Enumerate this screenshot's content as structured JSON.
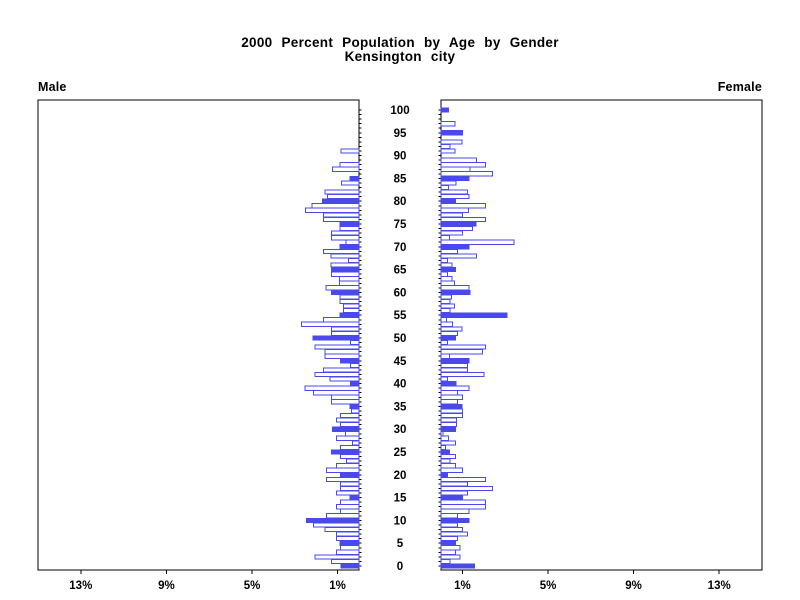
{
  "title": {
    "line1": "2000 Percent Population by Age by Gender",
    "line2": "Kensington city"
  },
  "panel_labels": {
    "left": "Male",
    "right": "Female"
  },
  "chart_data": {
    "type": "bar",
    "subtype": "population-pyramid",
    "title": "2000 Percent Population by Age by Gender",
    "subtitle": "Kensington city",
    "unit": "percent of total population",
    "age_min": 0,
    "age_max": 100,
    "solid_bar_every_years": 5,
    "axis": {
      "pct_max": 15,
      "grid": false,
      "male_ticks": {
        "values": [
          13,
          9,
          5,
          1
        ],
        "labels": [
          "13%",
          "9%",
          "5%",
          "1%"
        ]
      },
      "female_ticks": {
        "values": [
          1,
          5,
          9,
          13
        ],
        "labels": [
          "1%",
          "5%",
          "9%",
          "13%"
        ]
      },
      "age_tick_labels": [
        "0",
        "5",
        "10",
        "15",
        "20",
        "25",
        "30",
        "35",
        "40",
        "45",
        "50",
        "55",
        "60",
        "65",
        "70",
        "75",
        "80",
        "85",
        "90",
        "95",
        "100"
      ]
    },
    "colors": {
      "bar": "#4a4aec",
      "bar_fill_solid": "#4a4aec",
      "bar_fill_open": "#ffffff",
      "frame": "#000000",
      "text": "#000000",
      "background": "#ffffff"
    },
    "series": [
      {
        "name": "Male",
        "side": "left",
        "values_by_age": [
          0.84,
          1.28,
          2.06,
          1.04,
          0.86,
          0.89,
          1.04,
          1.04,
          1.59,
          2.13,
          2.45,
          1.51,
          0.86,
          1.04,
          0.86,
          0.42,
          1.04,
          0.86,
          0.86,
          1.51,
          0.86,
          1.51,
          1.04,
          0.58,
          0.86,
          1.28,
          0.86,
          0.3,
          1.04,
          0.62,
          1.23,
          0.86,
          1.04,
          0.86,
          0.35,
          0.42,
          1.28,
          1.28,
          2.13,
          2.52,
          0.4,
          1.36,
          2.06,
          1.67,
          0.4,
          0.86,
          1.59,
          1.59,
          2.06,
          0.4,
          2.15,
          1.28,
          1.28,
          2.68,
          1.67,
          0.89,
          0.73,
          0.73,
          0.89,
          0.89,
          1.28,
          1.54,
          0.92,
          0.92,
          1.28,
          1.28,
          1.32,
          0.5,
          1.32,
          1.67,
          0.89,
          0.6,
          1.28,
          1.28,
          0.89,
          0.89,
          1.67,
          1.67,
          2.5,
          2.2,
          1.71,
          1.48,
          1.59,
          0,
          0.81,
          0.42,
          0,
          1.23,
          0.89,
          0,
          0,
          0.85,
          0,
          0,
          0,
          0,
          0,
          0,
          0,
          0,
          0
        ]
      },
      {
        "name": "Female",
        "side": "right",
        "values_by_age": [
          1.56,
          0.42,
          0.89,
          0.67,
          0.89,
          0.67,
          0.78,
          1.24,
          1.01,
          0.78,
          1.32,
          0.78,
          1.32,
          2.07,
          2.07,
          1.01,
          1.24,
          2.41,
          1.24,
          2.07,
          0.31,
          1.01,
          0.67,
          0.42,
          0.67,
          0.39,
          0.2,
          0.67,
          0.36,
          0.1,
          0.67,
          0.73,
          0.73,
          1.01,
          1.01,
          0.98,
          0.78,
          1.01,
          0.78,
          1.32,
          0.7,
          0.3,
          2.0,
          1.24,
          1.24,
          1.32,
          0.39,
          1.94,
          2.07,
          0.3,
          0.67,
          0.78,
          0.98,
          0.54,
          0.25,
          3.08,
          0.42,
          0.62,
          0.42,
          0.5,
          1.35,
          1.32,
          0.62,
          0.51,
          0.3,
          0.67,
          0.51,
          0.3,
          1.66,
          0.78,
          1.32,
          3.42,
          0.39,
          1.01,
          1.48,
          1.63,
          2.07,
          1.01,
          1.29,
          2.07,
          0.67,
          1.32,
          1.24,
          0.34,
          0.7,
          1.32,
          2.41,
          1.35,
          2.07,
          1.66,
          0,
          0.65,
          0.42,
          0.98,
          0,
          1.0,
          0,
          0.65,
          0,
          0,
          0.36
        ]
      }
    ]
  }
}
